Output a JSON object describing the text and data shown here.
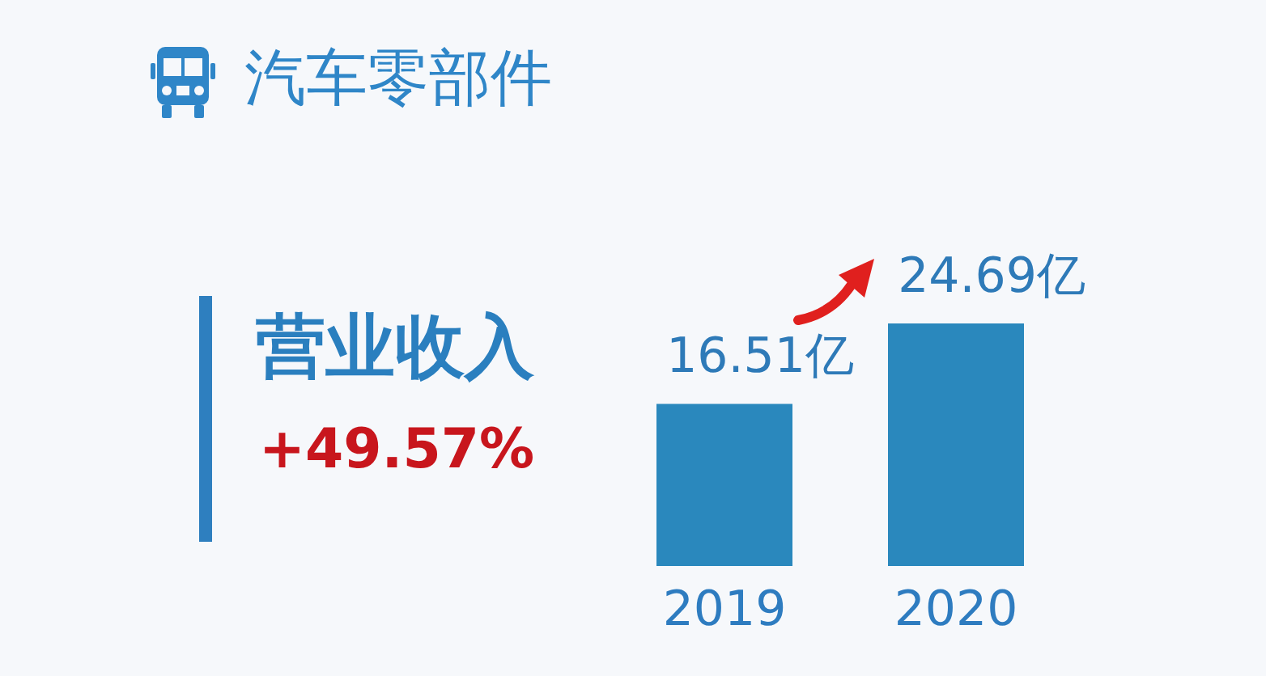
{
  "chart_data": {
    "type": "bar",
    "title": "汽车零部件",
    "categories": [
      "2019",
      "2020"
    ],
    "values": [
      16.51,
      24.69
    ],
    "value_labels": [
      "16.51亿",
      "24.69亿"
    ],
    "color": "#2a88bd",
    "annotations": [
      "营业收入",
      "+49.57%"
    ]
  }
}
